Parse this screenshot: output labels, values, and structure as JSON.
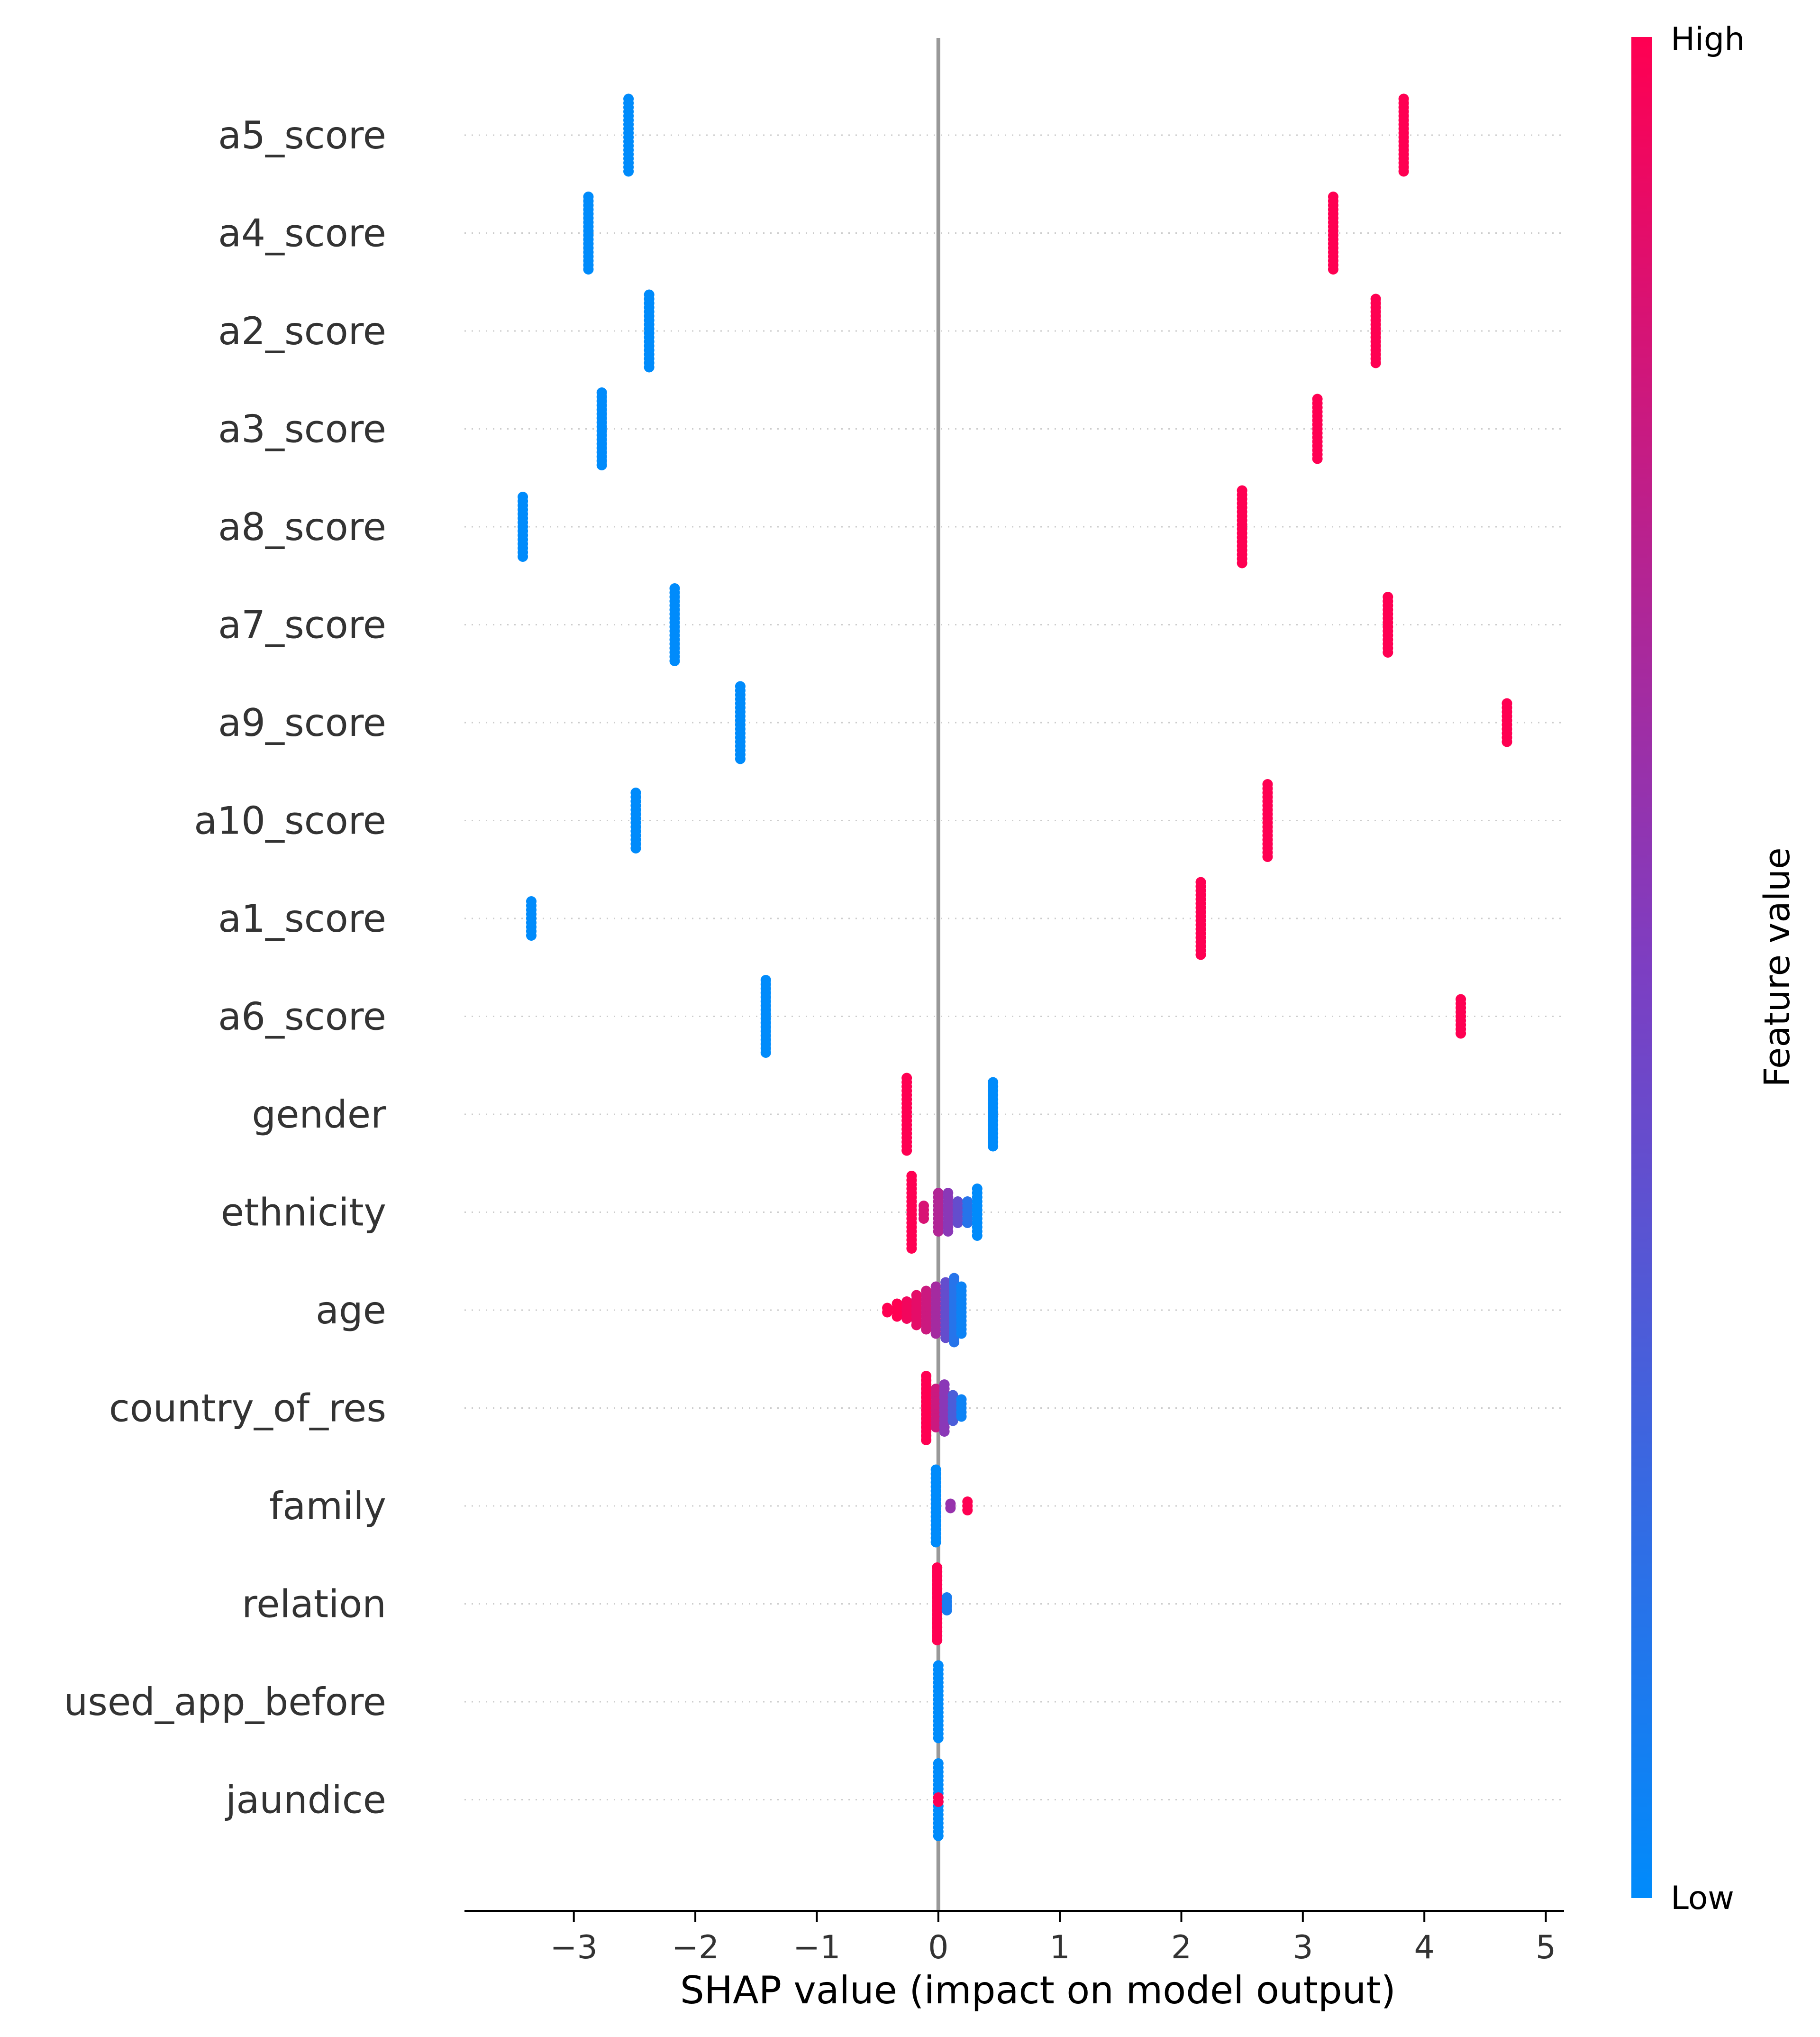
{
  "chart_data": {
    "type": "scatter",
    "subtype": "shap-beeswarm-summary",
    "xlabel": "SHAP value (impact on model output)",
    "xlim": [
      -3.9,
      5.15
    ],
    "xticks": [
      -3,
      -2,
      -1,
      0,
      1,
      2,
      3,
      4,
      5
    ],
    "xtick_labels": [
      "−3",
      "−2",
      "−1",
      "0",
      "1",
      "2",
      "3",
      "4",
      "5"
    ],
    "reference_line_x": 0,
    "grid": "dotted horizontal lines per feature",
    "colorbar": {
      "label": "Feature value",
      "high_label": "High",
      "low_label": "Low",
      "low_color": "#008bfb",
      "mid_color": "#7d3ec2",
      "high_color": "#ff0052",
      "placement": "right"
    },
    "features": [
      {
        "name": "a5_score",
        "groups": [
          {
            "x": -2.55,
            "v": 0,
            "n": 18
          },
          {
            "x": 3.83,
            "v": 1,
            "n": 18
          }
        ]
      },
      {
        "name": "a4_score",
        "groups": [
          {
            "x": -2.88,
            "v": 0,
            "n": 18
          },
          {
            "x": 3.25,
            "v": 1,
            "n": 18
          }
        ]
      },
      {
        "name": "a2_score",
        "groups": [
          {
            "x": -2.38,
            "v": 0,
            "n": 18
          },
          {
            "x": 3.6,
            "v": 1,
            "n": 16
          }
        ]
      },
      {
        "name": "a3_score",
        "groups": [
          {
            "x": -2.77,
            "v": 0,
            "n": 18
          },
          {
            "x": 3.12,
            "v": 1,
            "n": 15
          }
        ]
      },
      {
        "name": "a8_score",
        "groups": [
          {
            "x": -3.42,
            "v": 0,
            "n": 15
          },
          {
            "x": 2.5,
            "v": 1,
            "n": 18
          }
        ]
      },
      {
        "name": "a7_score",
        "groups": [
          {
            "x": -2.17,
            "v": 0,
            "n": 18
          },
          {
            "x": 3.7,
            "v": 1,
            "n": 14
          }
        ]
      },
      {
        "name": "a9_score",
        "groups": [
          {
            "x": -1.63,
            "v": 0,
            "n": 18
          },
          {
            "x": 4.68,
            "v": 1,
            "n": 10
          }
        ]
      },
      {
        "name": "a10_score",
        "groups": [
          {
            "x": -2.49,
            "v": 0,
            "n": 14
          },
          {
            "x": 2.71,
            "v": 1,
            "n": 18
          }
        ]
      },
      {
        "name": "a1_score",
        "groups": [
          {
            "x": -3.35,
            "v": 0,
            "n": 9
          },
          {
            "x": 2.16,
            "v": 1,
            "n": 18
          }
        ]
      },
      {
        "name": "a6_score",
        "groups": [
          {
            "x": -1.42,
            "v": 0,
            "n": 18
          },
          {
            "x": 4.3,
            "v": 1,
            "n": 9
          }
        ]
      },
      {
        "name": "gender",
        "groups": [
          {
            "x": -0.26,
            "v": 1,
            "n": 18
          },
          {
            "x": 0.45,
            "v": 0,
            "n": 16
          }
        ]
      },
      {
        "name": "ethnicity",
        "groups": [
          {
            "x": -0.22,
            "v": 1,
            "n": 18
          },
          {
            "x": -0.12,
            "v": 0.85,
            "n": 4
          },
          {
            "x": 0.0,
            "v": 0.7,
            "n": 10
          },
          {
            "x": 0.08,
            "v": 0.55,
            "n": 10
          },
          {
            "x": 0.16,
            "v": 0.4,
            "n": 6
          },
          {
            "x": 0.24,
            "v": 0.15,
            "n": 6
          },
          {
            "x": 0.32,
            "v": 0.0,
            "n": 12
          }
        ]
      },
      {
        "name": "age",
        "groups": [
          {
            "x": -0.42,
            "v": 1,
            "n": 2
          },
          {
            "x": -0.34,
            "v": 1,
            "n": 4
          },
          {
            "x": -0.26,
            "v": 0.95,
            "n": 5
          },
          {
            "x": -0.18,
            "v": 0.9,
            "n": 8
          },
          {
            "x": -0.1,
            "v": 0.8,
            "n": 10
          },
          {
            "x": -0.02,
            "v": 0.65,
            "n": 12
          },
          {
            "x": 0.06,
            "v": 0.4,
            "n": 14
          },
          {
            "x": 0.13,
            "v": 0.15,
            "n": 16
          },
          {
            "x": 0.19,
            "v": 0.05,
            "n": 12
          }
        ]
      },
      {
        "name": "country_of_res",
        "groups": [
          {
            "x": -0.1,
            "v": 1,
            "n": 16
          },
          {
            "x": -0.02,
            "v": 0.8,
            "n": 10
          },
          {
            "x": 0.05,
            "v": 0.55,
            "n": 12
          },
          {
            "x": 0.12,
            "v": 0.3,
            "n": 7
          },
          {
            "x": 0.19,
            "v": 0.05,
            "n": 5
          }
        ]
      },
      {
        "name": "family",
        "groups": [
          {
            "x": -0.02,
            "v": 0,
            "n": 18
          },
          {
            "x": 0.1,
            "v": 0.6,
            "n": 2
          },
          {
            "x": 0.24,
            "v": 1,
            "n": 3
          }
        ]
      },
      {
        "name": "relation",
        "groups": [
          {
            "x": -0.01,
            "v": 1,
            "n": 18
          },
          {
            "x": 0.07,
            "v": 0.1,
            "n": 4
          }
        ]
      },
      {
        "name": "used_app_before",
        "groups": [
          {
            "x": 0.0,
            "v": 0,
            "n": 18
          }
        ]
      },
      {
        "name": "jaundice",
        "groups": [
          {
            "x": 0.0,
            "v": 0,
            "n": 18
          },
          {
            "x": 0.0,
            "v": 1,
            "n": 2
          }
        ]
      }
    ]
  }
}
